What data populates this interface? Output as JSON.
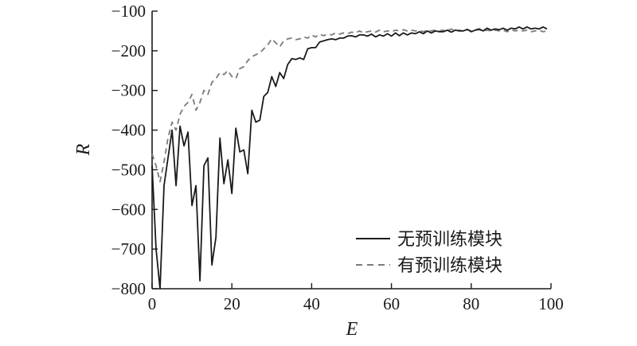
{
  "chart_data": {
    "type": "line",
    "title": "",
    "xlabel": "E",
    "ylabel": "R",
    "xlim": [
      0,
      100
    ],
    "ylim": [
      -800,
      -100
    ],
    "xticks": [
      0,
      20,
      40,
      60,
      80,
      100
    ],
    "yticks": [
      -100,
      -200,
      -300,
      -400,
      -500,
      -600,
      -700,
      -800
    ],
    "xtick_labels": [
      "0",
      "20",
      "40",
      "60",
      "80",
      "100"
    ],
    "ytick_labels": [
      "−100",
      "−200",
      "−300",
      "−400",
      "−500",
      "−600",
      "−700",
      "−800"
    ],
    "grid": false,
    "legend_position": "bottom-right",
    "series": [
      {
        "name": "无预训练模块",
        "color": "#1a1a1a",
        "style": "solid",
        "x": [
          0,
          1,
          2,
          3,
          4,
          5,
          6,
          7,
          8,
          9,
          10,
          11,
          12,
          13,
          14,
          15,
          16,
          17,
          18,
          19,
          20,
          21,
          22,
          23,
          24,
          25,
          26,
          27,
          28,
          29,
          30,
          31,
          32,
          33,
          34,
          35,
          36,
          37,
          38,
          39,
          40,
          41,
          42,
          43,
          44,
          45,
          46,
          47,
          48,
          49,
          50,
          51,
          52,
          53,
          54,
          55,
          56,
          57,
          58,
          59,
          60,
          61,
          62,
          63,
          64,
          65,
          66,
          67,
          68,
          69,
          70,
          71,
          72,
          73,
          74,
          75,
          76,
          77,
          78,
          79,
          80,
          81,
          82,
          83,
          84,
          85,
          86,
          87,
          88,
          89,
          90,
          91,
          92,
          93,
          94,
          95,
          96,
          97,
          98,
          99
        ],
        "values": [
          -490,
          -700,
          -800,
          -540,
          -470,
          -400,
          -540,
          -390,
          -440,
          -405,
          -590,
          -540,
          -780,
          -490,
          -470,
          -740,
          -670,
          -420,
          -535,
          -475,
          -560,
          -395,
          -455,
          -450,
          -510,
          -350,
          -380,
          -375,
          -315,
          -305,
          -265,
          -290,
          -255,
          -270,
          -235,
          -220,
          -222,
          -218,
          -222,
          -195,
          -192,
          -192,
          -178,
          -175,
          -172,
          -170,
          -172,
          -168,
          -168,
          -163,
          -162,
          -165,
          -160,
          -160,
          -163,
          -158,
          -165,
          -160,
          -163,
          -157,
          -163,
          -155,
          -162,
          -155,
          -160,
          -155,
          -157,
          -152,
          -157,
          -150,
          -155,
          -150,
          -152,
          -152,
          -148,
          -153,
          -148,
          -150,
          -150,
          -146,
          -152,
          -148,
          -145,
          -150,
          -143,
          -148,
          -145,
          -147,
          -143,
          -148,
          -143,
          -145,
          -140,
          -145,
          -140,
          -145,
          -143,
          -145,
          -140,
          -145
        ]
      },
      {
        "name": "有预训练模块",
        "color": "#7a7a7a",
        "style": "dashed",
        "x": [
          0,
          1,
          2,
          3,
          4,
          5,
          6,
          7,
          8,
          9,
          10,
          11,
          12,
          13,
          14,
          15,
          16,
          17,
          18,
          19,
          20,
          21,
          22,
          23,
          24,
          25,
          26,
          27,
          28,
          29,
          30,
          31,
          32,
          33,
          34,
          35,
          36,
          37,
          38,
          39,
          40,
          41,
          42,
          43,
          44,
          45,
          46,
          47,
          48,
          49,
          50,
          51,
          52,
          53,
          54,
          55,
          56,
          57,
          58,
          59,
          60,
          61,
          62,
          63,
          64,
          65,
          66,
          67,
          68,
          69,
          70,
          71,
          72,
          73,
          74,
          75,
          76,
          77,
          78,
          79,
          80,
          81,
          82,
          83,
          84,
          85,
          86,
          87,
          88,
          89,
          90,
          91,
          92,
          93,
          94,
          95,
          96,
          97,
          98,
          99
        ],
        "values": [
          -460,
          -490,
          -530,
          -480,
          -420,
          -380,
          -400,
          -360,
          -340,
          -330,
          -310,
          -350,
          -330,
          -300,
          -310,
          -280,
          -270,
          -255,
          -260,
          -250,
          -265,
          -270,
          -245,
          -240,
          -225,
          -215,
          -210,
          -205,
          -195,
          -185,
          -170,
          -180,
          -190,
          -175,
          -170,
          -168,
          -172,
          -170,
          -165,
          -168,
          -160,
          -165,
          -158,
          -162,
          -158,
          -160,
          -155,
          -158,
          -155,
          -157,
          -153,
          -155,
          -150,
          -155,
          -152,
          -150,
          -153,
          -148,
          -152,
          -150,
          -152,
          -148,
          -150,
          -147,
          -150,
          -148,
          -150,
          -148,
          -152,
          -148,
          -150,
          -148,
          -150,
          -148,
          -150,
          -145,
          -150,
          -148,
          -150,
          -147,
          -150,
          -148,
          -147,
          -150,
          -148,
          -150,
          -148,
          -150,
          -148,
          -152,
          -147,
          -150,
          -148,
          -150,
          -148,
          -152,
          -150,
          -148,
          -152,
          -150
        ]
      }
    ]
  }
}
